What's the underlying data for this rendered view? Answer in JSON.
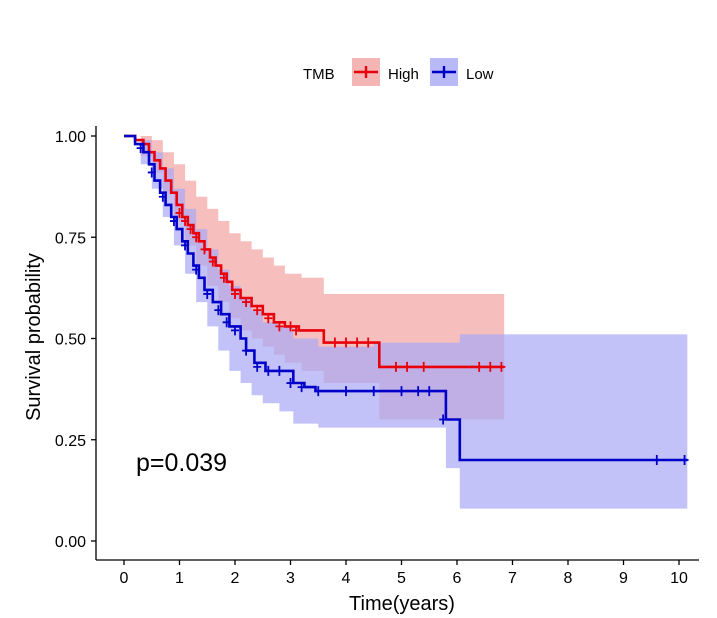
{
  "chart_data": {
    "type": "line",
    "subtype": "kaplan-meier",
    "title": "",
    "xlabel": "Time(years)",
    "ylabel": "Survival probability",
    "xlim": [
      0,
      10
    ],
    "ylim": [
      0,
      1
    ],
    "xticks": [
      "0",
      "1",
      "2",
      "3",
      "4",
      "5",
      "6",
      "7",
      "8",
      "9",
      "10"
    ],
    "yticks": [
      "0.00",
      "0.25",
      "0.50",
      "0.75",
      "1.00"
    ],
    "legend": {
      "title": "TMB",
      "position": "top"
    },
    "annotation": "p=0.039",
    "grid": false,
    "series": [
      {
        "name": "High",
        "color": "#e8000b",
        "band_color": "#f4a3a3",
        "steps": [
          [
            0,
            1.0
          ],
          [
            0.2,
            0.99
          ],
          [
            0.35,
            0.98
          ],
          [
            0.45,
            0.96
          ],
          [
            0.55,
            0.94
          ],
          [
            0.65,
            0.92
          ],
          [
            0.75,
            0.89
          ],
          [
            0.85,
            0.86
          ],
          [
            0.95,
            0.83
          ],
          [
            1.05,
            0.8
          ],
          [
            1.15,
            0.78
          ],
          [
            1.25,
            0.76
          ],
          [
            1.35,
            0.74
          ],
          [
            1.45,
            0.72
          ],
          [
            1.55,
            0.7
          ],
          [
            1.65,
            0.68
          ],
          [
            1.75,
            0.66
          ],
          [
            1.85,
            0.64
          ],
          [
            1.95,
            0.62
          ],
          [
            2.1,
            0.6
          ],
          [
            2.3,
            0.58
          ],
          [
            2.5,
            0.56
          ],
          [
            2.7,
            0.54
          ],
          [
            2.9,
            0.53
          ],
          [
            3.15,
            0.52
          ],
          [
            3.6,
            0.49
          ],
          [
            4.6,
            0.43
          ],
          [
            6.85,
            0.43
          ]
        ],
        "upper": [
          [
            0,
            1.0
          ],
          [
            0.3,
            1.0
          ],
          [
            0.5,
            0.99
          ],
          [
            0.7,
            0.96
          ],
          [
            0.9,
            0.93
          ],
          [
            1.1,
            0.89
          ],
          [
            1.3,
            0.85
          ],
          [
            1.5,
            0.82
          ],
          [
            1.7,
            0.79
          ],
          [
            1.9,
            0.76
          ],
          [
            2.1,
            0.74
          ],
          [
            2.3,
            0.72
          ],
          [
            2.5,
            0.7
          ],
          [
            2.7,
            0.68
          ],
          [
            2.9,
            0.66
          ],
          [
            3.2,
            0.65
          ],
          [
            3.6,
            0.61
          ],
          [
            4.6,
            0.61
          ],
          [
            6.85,
            0.61
          ]
        ],
        "lower": [
          [
            0,
            1.0
          ],
          [
            0.3,
            0.95
          ],
          [
            0.5,
            0.91
          ],
          [
            0.7,
            0.86
          ],
          [
            0.9,
            0.79
          ],
          [
            1.1,
            0.73
          ],
          [
            1.3,
            0.68
          ],
          [
            1.5,
            0.63
          ],
          [
            1.7,
            0.59
          ],
          [
            1.9,
            0.55
          ],
          [
            2.1,
            0.52
          ],
          [
            2.3,
            0.5
          ],
          [
            2.5,
            0.48
          ],
          [
            2.7,
            0.46
          ],
          [
            2.9,
            0.44
          ],
          [
            3.2,
            0.42
          ],
          [
            3.6,
            0.39
          ],
          [
            4.6,
            0.3
          ],
          [
            6.85,
            0.3
          ]
        ],
        "censored": [
          [
            1.0,
            0.81
          ],
          [
            1.1,
            0.79
          ],
          [
            1.2,
            0.77
          ],
          [
            1.3,
            0.75
          ],
          [
            1.45,
            0.72
          ],
          [
            1.6,
            0.69
          ],
          [
            1.8,
            0.65
          ],
          [
            2.0,
            0.61
          ],
          [
            2.2,
            0.59
          ],
          [
            2.4,
            0.57
          ],
          [
            2.6,
            0.55
          ],
          [
            2.8,
            0.53
          ],
          [
            3.0,
            0.53
          ],
          [
            3.1,
            0.52
          ],
          [
            3.8,
            0.49
          ],
          [
            4.0,
            0.49
          ],
          [
            4.2,
            0.49
          ],
          [
            4.4,
            0.49
          ],
          [
            4.9,
            0.43
          ],
          [
            5.1,
            0.43
          ],
          [
            5.4,
            0.43
          ],
          [
            6.4,
            0.43
          ],
          [
            6.6,
            0.43
          ],
          [
            6.8,
            0.43
          ]
        ]
      },
      {
        "name": "Low",
        "color": "#0000c8",
        "band_color": "#a8a8f5",
        "steps": [
          [
            0,
            1.0
          ],
          [
            0.2,
            0.98
          ],
          [
            0.35,
            0.96
          ],
          [
            0.45,
            0.93
          ],
          [
            0.55,
            0.89
          ],
          [
            0.65,
            0.86
          ],
          [
            0.75,
            0.83
          ],
          [
            0.85,
            0.8
          ],
          [
            0.95,
            0.77
          ],
          [
            1.05,
            0.74
          ],
          [
            1.15,
            0.71
          ],
          [
            1.25,
            0.68
          ],
          [
            1.35,
            0.65
          ],
          [
            1.45,
            0.62
          ],
          [
            1.6,
            0.59
          ],
          [
            1.75,
            0.56
          ],
          [
            1.9,
            0.53
          ],
          [
            2.1,
            0.5
          ],
          [
            2.2,
            0.47
          ],
          [
            2.35,
            0.44
          ],
          [
            2.55,
            0.42
          ],
          [
            2.75,
            0.42
          ],
          [
            3.05,
            0.39
          ],
          [
            3.25,
            0.38
          ],
          [
            3.45,
            0.37
          ],
          [
            5.8,
            0.3
          ],
          [
            6.05,
            0.2
          ],
          [
            10.15,
            0.2
          ]
        ],
        "upper": [
          [
            0,
            1.0
          ],
          [
            0.3,
            0.99
          ],
          [
            0.5,
            0.96
          ],
          [
            0.7,
            0.92
          ],
          [
            0.9,
            0.87
          ],
          [
            1.1,
            0.82
          ],
          [
            1.3,
            0.77
          ],
          [
            1.5,
            0.72
          ],
          [
            1.7,
            0.67
          ],
          [
            1.9,
            0.63
          ],
          [
            2.1,
            0.6
          ],
          [
            2.3,
            0.57
          ],
          [
            2.5,
            0.54
          ],
          [
            2.8,
            0.53
          ],
          [
            3.05,
            0.5
          ],
          [
            3.5,
            0.48
          ],
          [
            4.5,
            0.49
          ],
          [
            6.05,
            0.51
          ],
          [
            10.15,
            0.51
          ]
        ],
        "lower": [
          [
            0,
            1.0
          ],
          [
            0.3,
            0.93
          ],
          [
            0.5,
            0.87
          ],
          [
            0.7,
            0.8
          ],
          [
            0.9,
            0.73
          ],
          [
            1.1,
            0.66
          ],
          [
            1.3,
            0.59
          ],
          [
            1.5,
            0.53
          ],
          [
            1.7,
            0.47
          ],
          [
            1.9,
            0.42
          ],
          [
            2.1,
            0.39
          ],
          [
            2.3,
            0.36
          ],
          [
            2.5,
            0.34
          ],
          [
            2.8,
            0.32
          ],
          [
            3.05,
            0.29
          ],
          [
            3.5,
            0.28
          ],
          [
            5.8,
            0.18
          ],
          [
            6.05,
            0.08
          ],
          [
            10.15,
            0.08
          ]
        ],
        "censored": [
          [
            0.3,
            0.97
          ],
          [
            0.5,
            0.91
          ],
          [
            0.7,
            0.85
          ],
          [
            0.9,
            0.79
          ],
          [
            1.1,
            0.73
          ],
          [
            1.3,
            0.67
          ],
          [
            1.5,
            0.61
          ],
          [
            1.7,
            0.57
          ],
          [
            1.85,
            0.54
          ],
          [
            2.0,
            0.52
          ],
          [
            2.2,
            0.47
          ],
          [
            2.4,
            0.43
          ],
          [
            2.6,
            0.42
          ],
          [
            2.8,
            0.42
          ],
          [
            3.0,
            0.39
          ],
          [
            3.2,
            0.38
          ],
          [
            3.5,
            0.37
          ],
          [
            4.0,
            0.37
          ],
          [
            4.5,
            0.37
          ],
          [
            5.0,
            0.37
          ],
          [
            5.3,
            0.37
          ],
          [
            5.5,
            0.37
          ],
          [
            5.75,
            0.3
          ],
          [
            9.6,
            0.2
          ],
          [
            10.1,
            0.2
          ]
        ]
      }
    ]
  }
}
